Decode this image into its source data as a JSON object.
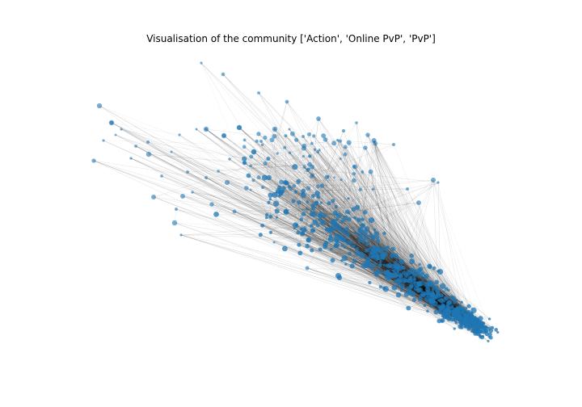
{
  "figure": {
    "title": "Visualisation of the community ['Action', 'Online PvP', 'PvP']"
  },
  "chart_data": {
    "type": "network",
    "title": "Visualisation of the community ['Action', 'Online PvP', 'PvP']",
    "axes": "off",
    "grid": false,
    "legend": "none",
    "node_color": "#1f77b4",
    "edge_color": "#000000"
  }
}
